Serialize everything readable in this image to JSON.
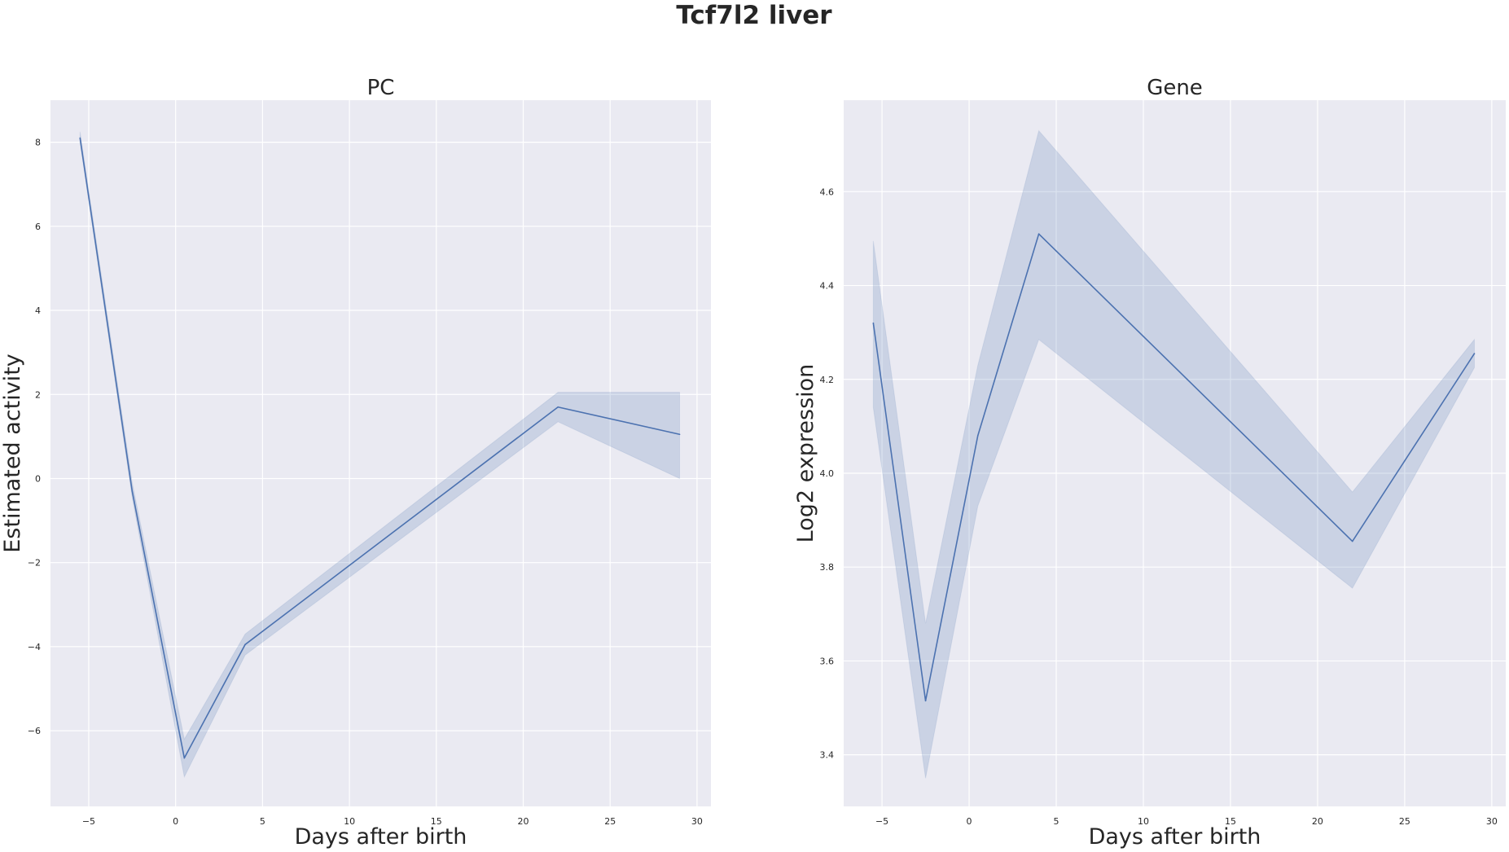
{
  "figure": {
    "title": "Tcf7l2 liver",
    "background": "#ffffff",
    "axes_face": "#eaeaf2",
    "grid_color": "#ffffff",
    "line_color": "#4c72b0",
    "band_color": "#4c72b0",
    "band_opacity": 0.2
  },
  "chart_data": [
    {
      "type": "line",
      "title": "PC",
      "xlabel": "Days after birth",
      "ylabel": "Estimated activity",
      "xlim": [
        -7.2,
        30.8
      ],
      "ylim": [
        -7.8,
        9.0
      ],
      "xticks": [
        -5,
        0,
        5,
        10,
        15,
        20,
        25,
        30
      ],
      "yticks": [
        -6,
        -4,
        -2,
        0,
        2,
        4,
        6,
        8
      ],
      "grid": true,
      "series": [
        {
          "x": [
            -5.5,
            -2.5,
            0.5,
            4,
            22,
            29
          ],
          "y": [
            8.1,
            -0.3,
            -6.65,
            -3.95,
            1.7,
            1.05
          ],
          "ci_lower": [
            8.0,
            -0.45,
            -7.1,
            -4.2,
            1.35,
            0.0
          ],
          "ci_upper": [
            8.25,
            -0.1,
            -6.2,
            -3.7,
            2.05,
            2.05
          ]
        }
      ]
    },
    {
      "type": "line",
      "title": "Gene",
      "xlabel": "Days after birth",
      "ylabel": "Log2 expression",
      "xlim": [
        -7.2,
        30.8
      ],
      "ylim": [
        3.29,
        4.795
      ],
      "xticks": [
        -5,
        0,
        5,
        10,
        15,
        20,
        25,
        30
      ],
      "yticks": [
        3.4,
        3.6,
        3.8,
        4.0,
        4.2,
        4.4,
        4.6
      ],
      "grid": true,
      "series": [
        {
          "x": [
            -5.5,
            -2.5,
            0.5,
            4,
            22,
            29
          ],
          "y": [
            4.32,
            3.515,
            4.08,
            4.51,
            3.855,
            4.255
          ],
          "ci_lower": [
            4.14,
            3.35,
            3.93,
            4.285,
            3.755,
            4.225
          ],
          "ci_upper": [
            4.495,
            3.68,
            4.23,
            4.73,
            3.96,
            4.285
          ]
        }
      ]
    }
  ]
}
